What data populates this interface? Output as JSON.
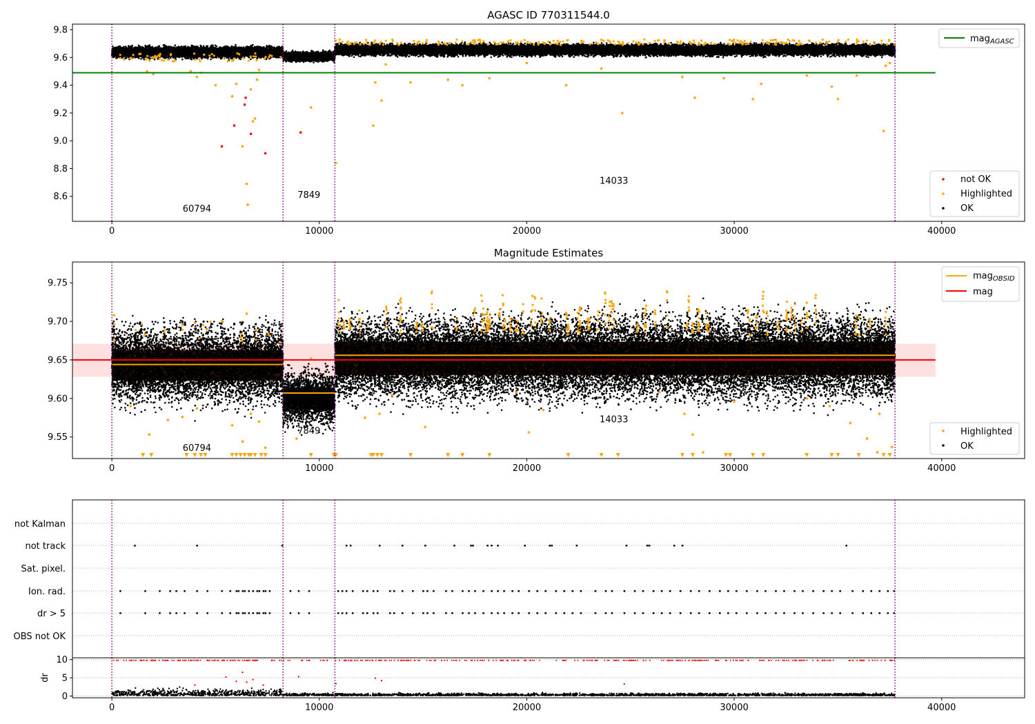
{
  "chart_data": [
    {
      "type": "scatter",
      "title": "AGASC ID 770311544.0",
      "xlim": [
        -1900,
        44000
      ],
      "ylim": [
        8.42,
        9.84
      ],
      "xticks": [
        0,
        10000,
        20000,
        30000,
        40000
      ],
      "xtick_labels": [
        "0",
        "10000",
        "20000",
        "30000",
        "40000"
      ],
      "yticks": [
        8.6,
        8.8,
        9.0,
        9.2,
        9.4,
        9.6,
        9.8
      ],
      "ytick_labels": [
        "8.6",
        "8.8",
        "9.0",
        "9.2",
        "9.4",
        "9.6",
        "9.8"
      ],
      "obs_boundaries": [
        0,
        8250,
        10750,
        37750
      ],
      "obs_labels": [
        {
          "text": "60794",
          "x": 4100,
          "y": 8.49
        },
        {
          "text": "7849",
          "x": 9500,
          "y": 8.59
        },
        {
          "text": "14033",
          "x": 24200,
          "y": 8.69
        }
      ],
      "hlines": [
        {
          "name": "mag_AGASC",
          "y": 9.49,
          "x_range": [
            -1900,
            39700
          ],
          "color": "#008000"
        }
      ],
      "bands": [
        {
          "x_range": [
            0,
            8250
          ],
          "center": 9.638,
          "spread": 0.018
        },
        {
          "x_range": [
            8250,
            10750
          ],
          "center": 9.607,
          "spread": 0.015
        },
        {
          "x_range": [
            10750,
            37750
          ],
          "center": 9.655,
          "spread": 0.018
        }
      ],
      "outliers_highlighted": [
        [
          1700,
          9.5
        ],
        [
          2000,
          9.48
        ],
        [
          3800,
          9.5
        ],
        [
          4100,
          9.46
        ],
        [
          4300,
          9.49
        ],
        [
          5000,
          9.4
        ],
        [
          5800,
          9.32
        ],
        [
          6000,
          9.41
        ],
        [
          6300,
          8.96
        ],
        [
          6500,
          8.69
        ],
        [
          6550,
          8.54
        ],
        [
          6700,
          9.37
        ],
        [
          6800,
          9.14
        ],
        [
          6900,
          9.16
        ],
        [
          7000,
          9.44
        ],
        [
          7100,
          9.51
        ],
        [
          9600,
          9.24
        ],
        [
          10800,
          8.84
        ],
        [
          12600,
          9.11
        ],
        [
          12700,
          9.42
        ],
        [
          13000,
          9.29
        ],
        [
          13200,
          9.55
        ],
        [
          14400,
          9.42
        ],
        [
          16200,
          9.44
        ],
        [
          16900,
          9.4
        ],
        [
          18200,
          9.45
        ],
        [
          20000,
          9.56
        ],
        [
          21900,
          9.4
        ],
        [
          23600,
          9.52
        ],
        [
          24600,
          9.2
        ],
        [
          27500,
          9.46
        ],
        [
          28100,
          9.31
        ],
        [
          29500,
          9.45
        ],
        [
          30900,
          9.3
        ],
        [
          31300,
          9.41
        ],
        [
          33500,
          9.47
        ],
        [
          34700,
          9.39
        ],
        [
          35000,
          9.3
        ],
        [
          35900,
          9.47
        ],
        [
          37200,
          9.07
        ],
        [
          37300,
          9.54
        ],
        [
          37500,
          9.56
        ]
      ],
      "outliers_not_ok": [
        [
          5300,
          8.96
        ],
        [
          5900,
          9.11
        ],
        [
          6400,
          9.26
        ],
        [
          6450,
          9.31
        ],
        [
          6700,
          9.05
        ],
        [
          7400,
          8.91
        ],
        [
          9100,
          9.06
        ]
      ],
      "axis_colors": {
        "ok": "#000000",
        "highlighted": "#ffa500",
        "not_ok": "#ff0000",
        "boundary": "#800080"
      },
      "legend_lines": [
        {
          "label": "mag",
          "sub": "AGASC",
          "color": "#008000"
        }
      ],
      "legend_markers": [
        {
          "label": "not OK",
          "color": "#ff0000"
        },
        {
          "label": "Highlighted",
          "color": "#ffa500"
        },
        {
          "label": "OK",
          "color": "#000000"
        }
      ]
    },
    {
      "type": "scatter",
      "title": "Magnitude Estimates",
      "xlim": [
        -1900,
        44000
      ],
      "ylim": [
        9.522,
        9.777
      ],
      "xticks": [
        0,
        10000,
        20000,
        30000,
        40000
      ],
      "xtick_labels": [
        "0",
        "10000",
        "20000",
        "30000",
        "40000"
      ],
      "yticks": [
        9.55,
        9.6,
        9.65,
        9.7,
        9.75
      ],
      "ytick_labels": [
        "9.55",
        "9.60",
        "9.65",
        "9.70",
        "9.75"
      ],
      "obs_boundaries": [
        0,
        8250,
        10750,
        37750
      ],
      "obs_labels": [
        {
          "text": "60794",
          "x": 4100,
          "y": 9.532
        },
        {
          "text": "7849",
          "x": 9500,
          "y": 9.554
        },
        {
          "text": "14033",
          "x": 24200,
          "y": 9.569
        }
      ],
      "mag": {
        "value": 9.65,
        "band": [
          9.628,
          9.671
        ],
        "x_range": [
          -1900,
          39700
        ],
        "color": "#ff0000"
      },
      "mag_obsid": [
        {
          "x_range": [
            0,
            8250
          ],
          "value": 9.644
        },
        {
          "x_range": [
            8250,
            10750
          ],
          "value": 9.607
        },
        {
          "x_range": [
            10750,
            37750
          ],
          "value": 9.656
        }
      ],
      "bands": [
        {
          "x_range": [
            0,
            8250
          ],
          "center": 9.643,
          "spread": 0.022
        },
        {
          "x_range": [
            8250,
            10750
          ],
          "center": 9.6,
          "spread": 0.016
        },
        {
          "x_range": [
            10750,
            37750
          ],
          "center": 9.652,
          "spread": 0.024
        }
      ],
      "outliers_highlighted": [
        [
          100,
          9.708
        ],
        [
          900,
          9.59
        ],
        [
          1800,
          9.553
        ],
        [
          2700,
          9.572
        ],
        [
          3400,
          9.576
        ],
        [
          4100,
          9.587
        ],
        [
          5300,
          9.7
        ],
        [
          5800,
          9.565
        ],
        [
          6300,
          9.544
        ],
        [
          6500,
          9.71
        ],
        [
          6700,
          9.58
        ],
        [
          7100,
          9.57
        ],
        [
          7400,
          9.536
        ],
        [
          8900,
          9.548
        ],
        [
          9600,
          9.652
        ],
        [
          12200,
          9.575
        ],
        [
          12900,
          9.58
        ],
        [
          13500,
          9.604
        ],
        [
          15100,
          9.563
        ],
        [
          19500,
          9.608
        ],
        [
          20100,
          9.556
        ],
        [
          20800,
          9.585
        ],
        [
          26400,
          9.608
        ],
        [
          27600,
          9.58
        ],
        [
          28000,
          9.553
        ],
        [
          28500,
          9.53
        ],
        [
          30000,
          9.596
        ],
        [
          33500,
          9.6
        ],
        [
          34600,
          9.59
        ],
        [
          35600,
          9.568
        ],
        [
          36400,
          9.548
        ],
        [
          37000,
          9.58
        ],
        [
          37600,
          9.537
        ],
        [
          36900,
          9.53
        ]
      ],
      "arrows_x": [
        1500,
        1900,
        3600,
        4000,
        4300,
        4500,
        5800,
        6000,
        6200,
        6400,
        6600,
        6700,
        6900,
        7200,
        7400,
        9600,
        10700,
        10800,
        12500,
        12600,
        12800,
        13000,
        14400,
        16200,
        16900,
        18200,
        22000,
        23600,
        24400,
        27500,
        28000,
        29600,
        29800,
        30900,
        31400,
        33500,
        34700,
        35000,
        36000,
        37200,
        37500
      ],
      "legend_lines": [
        {
          "label": "mag",
          "sub": "OBSID",
          "color": "#ffa500"
        },
        {
          "label": "mag",
          "sub": "",
          "color": "#ff0000"
        }
      ],
      "legend_markers": [
        {
          "label": "Highlighted",
          "color": "#ffa500"
        },
        {
          "label": "OK",
          "color": "#000000"
        }
      ]
    },
    {
      "type": "scatter",
      "title": "",
      "xlim": [
        -1900,
        44000
      ],
      "categories": [
        "not Kalman",
        "not track",
        "Sat. pixel.",
        "Ion. rad.",
        "dr > 5",
        "OBS not OK"
      ],
      "obs_boundaries": [
        0,
        8250,
        10750,
        37750
      ],
      "flag_not_track_x": [
        1100,
        4100,
        8200,
        11300,
        11500,
        12900,
        14000,
        15100,
        16500,
        17300,
        17400,
        18100,
        18300,
        18600,
        19900,
        21100,
        21200,
        22400,
        24800,
        25800,
        25900,
        27100,
        27500,
        35400
      ],
      "flag_ion_rad_x": [
        400,
        1600,
        2300,
        2800,
        3100,
        3500,
        4100,
        4600,
        5300,
        5700,
        6000,
        6100,
        6300,
        6400,
        6600,
        6800,
        7000,
        7100,
        7300,
        7400,
        7600,
        8600,
        9000,
        9500,
        10900,
        11100,
        11300,
        11600,
        12100,
        12300,
        12600,
        12800,
        13400,
        13600,
        14000,
        14500,
        15000,
        15200,
        15500,
        16100,
        16400,
        16900,
        17200,
        17500,
        17900,
        18300,
        18600,
        18900,
        19300,
        19600,
        20100,
        20500,
        20900,
        21400,
        21800,
        22200,
        22600,
        23300,
        23800,
        24100,
        24700,
        25200,
        25600,
        26100,
        26500,
        26900,
        27400,
        27900,
        28300,
        28800,
        29300,
        29700,
        30100,
        30600,
        31100,
        31500,
        32000,
        32400,
        32900,
        33300,
        33800,
        34300,
        34700,
        35100,
        35700,
        36200,
        36600,
        37000,
        37400,
        37700
      ],
      "flag_dr5_x": [
        400,
        1600,
        2300,
        2800,
        3100,
        3500,
        4100,
        4600,
        5300,
        5700,
        6000,
        6100,
        6300,
        6400,
        6600,
        6800,
        7000,
        7100,
        7300,
        7400,
        7600,
        8600,
        9000,
        9500,
        10900,
        11100,
        11300,
        11600,
        12100,
        12300,
        12600,
        12800,
        13400,
        13600,
        14000,
        14500,
        15000,
        15200,
        15500,
        16100,
        16400,
        16900,
        17200,
        17500,
        17900,
        18300,
        18600,
        18900,
        19300,
        19600,
        20100,
        20500,
        20900,
        21400,
        21800,
        22200,
        22600,
        23300,
        23800,
        24100,
        24700,
        25200,
        25600,
        26100,
        26500,
        26900,
        27400,
        27900,
        28300,
        28800,
        29300,
        29700,
        30100,
        30600,
        31100,
        31500,
        32000,
        32400,
        32900,
        33300,
        33800,
        34300,
        34700,
        35100,
        35700,
        36200,
        36600,
        37000,
        37400,
        37700
      ]
    },
    {
      "type": "scatter",
      "title": "",
      "ylabel": "dr",
      "xlim": [
        -1900,
        44000
      ],
      "ylim": [
        -0.5,
        10.5
      ],
      "xticks": [
        0,
        10000,
        20000,
        30000,
        40000
      ],
      "xtick_labels": [
        "0",
        "10000",
        "20000",
        "30000",
        "40000"
      ],
      "yticks": [
        0,
        5,
        10
      ],
      "ytick_labels": [
        "0",
        "5",
        "10"
      ],
      "obs_boundaries": [
        0,
        8250,
        10750,
        37750
      ],
      "dr_outliers": [
        [
          4000,
          3.0
        ],
        [
          5500,
          5.2
        ],
        [
          6000,
          4.0
        ],
        [
          6300,
          6.5
        ],
        [
          6500,
          3.8
        ],
        [
          6800,
          4.5
        ],
        [
          7300,
          3.0
        ],
        [
          9000,
          5.3
        ],
        [
          10800,
          3.4
        ],
        [
          12700,
          4.9
        ],
        [
          13000,
          4.2
        ],
        [
          24700,
          3.3
        ]
      ]
    }
  ]
}
